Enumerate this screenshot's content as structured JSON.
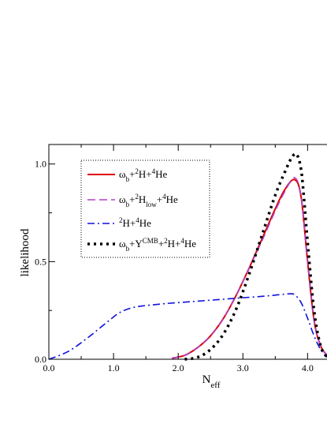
{
  "chart_data": {
    "type": "line",
    "xlabel_main": "N",
    "xlabel_sub": "eff",
    "ylabel": "likelihood",
    "xlim": [
      0.0,
      4.3
    ],
    "ylim": [
      0.0,
      1.1
    ],
    "x_ticks": [
      0.0,
      1.0,
      2.0,
      3.0,
      4.0
    ],
    "x_tick_labels": [
      "0.0",
      "1.0",
      "2.0",
      "3.0",
      "4.0"
    ],
    "y_ticks": [
      0.0,
      0.5,
      1.0
    ],
    "y_tick_labels": [
      "0.0",
      "0.5",
      "1.0"
    ],
    "grid": false,
    "legend_position": "top-left",
    "series": [
      {
        "legend": [
          {
            "t": "ω",
            "s": ""
          },
          {
            "t": "b",
            "s": "sub"
          },
          {
            "t": "+",
            "s": ""
          },
          {
            "t": "2",
            "s": "sup"
          },
          {
            "t": "H+",
            "s": ""
          },
          {
            "t": "4",
            "s": "sup"
          },
          {
            "t": "He",
            "s": ""
          }
        ],
        "color": "#e00000",
        "dash": "solid",
        "x": [
          1.9,
          2.1,
          2.3,
          2.5,
          2.7,
          2.9,
          3.1,
          3.3,
          3.5,
          3.65,
          3.8,
          3.9,
          4.0,
          4.1,
          4.2,
          4.3
        ],
        "y": [
          0.005,
          0.02,
          0.06,
          0.12,
          0.21,
          0.33,
          0.47,
          0.62,
          0.77,
          0.87,
          0.92,
          0.83,
          0.5,
          0.2,
          0.07,
          0.02
        ]
      },
      {
        "legend": [
          {
            "t": "ω",
            "s": ""
          },
          {
            "t": "b",
            "s": "sub"
          },
          {
            "t": "+",
            "s": ""
          },
          {
            "t": "2",
            "s": "sup"
          },
          {
            "t": "H",
            "s": ""
          },
          {
            "t": "low",
            "s": "sub"
          },
          {
            "t": "+",
            "s": ""
          },
          {
            "t": "4",
            "s": "sup"
          },
          {
            "t": "He",
            "s": ""
          }
        ],
        "color": "#b040c8",
        "dash": "long-dash",
        "x": [
          1.9,
          2.1,
          2.3,
          2.5,
          2.7,
          2.9,
          3.1,
          3.3,
          3.5,
          3.65,
          3.8,
          3.9,
          4.0,
          4.1,
          4.2,
          4.3
        ],
        "y": [
          0.005,
          0.02,
          0.06,
          0.12,
          0.21,
          0.33,
          0.47,
          0.61,
          0.76,
          0.86,
          0.93,
          0.83,
          0.5,
          0.2,
          0.07,
          0.02
        ]
      },
      {
        "legend": [
          {
            "t": "2",
            "s": "sup"
          },
          {
            "t": "H+",
            "s": ""
          },
          {
            "t": "4",
            "s": "sup"
          },
          {
            "t": "He",
            "s": ""
          }
        ],
        "color": "#1010e0",
        "dash": "dash-dot",
        "x": [
          0.0,
          0.3,
          0.6,
          0.9,
          1.1,
          1.3,
          1.5,
          1.8,
          2.2,
          2.6,
          3.0,
          3.4,
          3.7,
          3.8,
          3.9,
          4.0,
          4.1,
          4.2,
          4.3
        ],
        "y": [
          0.0,
          0.04,
          0.11,
          0.19,
          0.24,
          0.265,
          0.275,
          0.285,
          0.295,
          0.305,
          0.315,
          0.325,
          0.335,
          0.33,
          0.29,
          0.21,
          0.12,
          0.05,
          0.01
        ]
      },
      {
        "legend": [
          {
            "t": "ω",
            "s": ""
          },
          {
            "t": "b",
            "s": "sub"
          },
          {
            "t": "+Y",
            "s": ""
          },
          {
            "t": "CMB",
            "s": "sup"
          },
          {
            "t": "+",
            "s": ""
          },
          {
            "t": "2",
            "s": "sup"
          },
          {
            "t": "H+",
            "s": ""
          },
          {
            "t": "4",
            "s": "sup"
          },
          {
            "t": "He",
            "s": ""
          }
        ],
        "color": "#000000",
        "dash": "dotted",
        "x": [
          2.1,
          2.3,
          2.5,
          2.7,
          2.9,
          3.1,
          3.3,
          3.5,
          3.65,
          3.75,
          3.83,
          3.9,
          3.95,
          4.0,
          4.1,
          4.2,
          4.3
        ],
        "y": [
          0.0,
          0.01,
          0.05,
          0.13,
          0.26,
          0.44,
          0.64,
          0.84,
          0.96,
          1.03,
          1.05,
          0.97,
          0.8,
          0.6,
          0.25,
          0.07,
          0.01
        ]
      }
    ]
  }
}
